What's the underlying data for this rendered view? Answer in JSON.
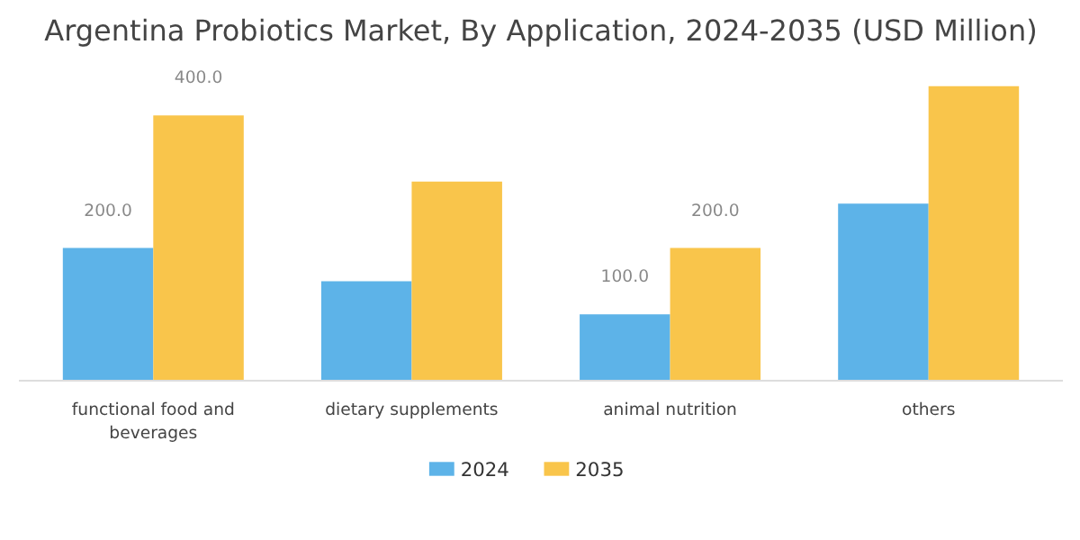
{
  "chart_data": {
    "type": "bar",
    "title": "Argentina Probiotics Market, By Application, 2024-2035 (USD Million)",
    "categories": [
      "functional food and beverages",
      "dietary supplements",
      "animal nutrition",
      "others"
    ],
    "series": [
      {
        "name": "2024",
        "color": "#5db3e8",
        "values": [
          200,
          150,
          100,
          267
        ],
        "value_labels": [
          "200.0",
          null,
          "100.0",
          null
        ]
      },
      {
        "name": "2035",
        "color": "#f9c54b",
        "values": [
          400,
          300,
          200,
          444
        ],
        "value_labels": [
          "400.0",
          null,
          "200.0",
          null
        ]
      }
    ],
    "grid": false,
    "legend": "bottom"
  }
}
